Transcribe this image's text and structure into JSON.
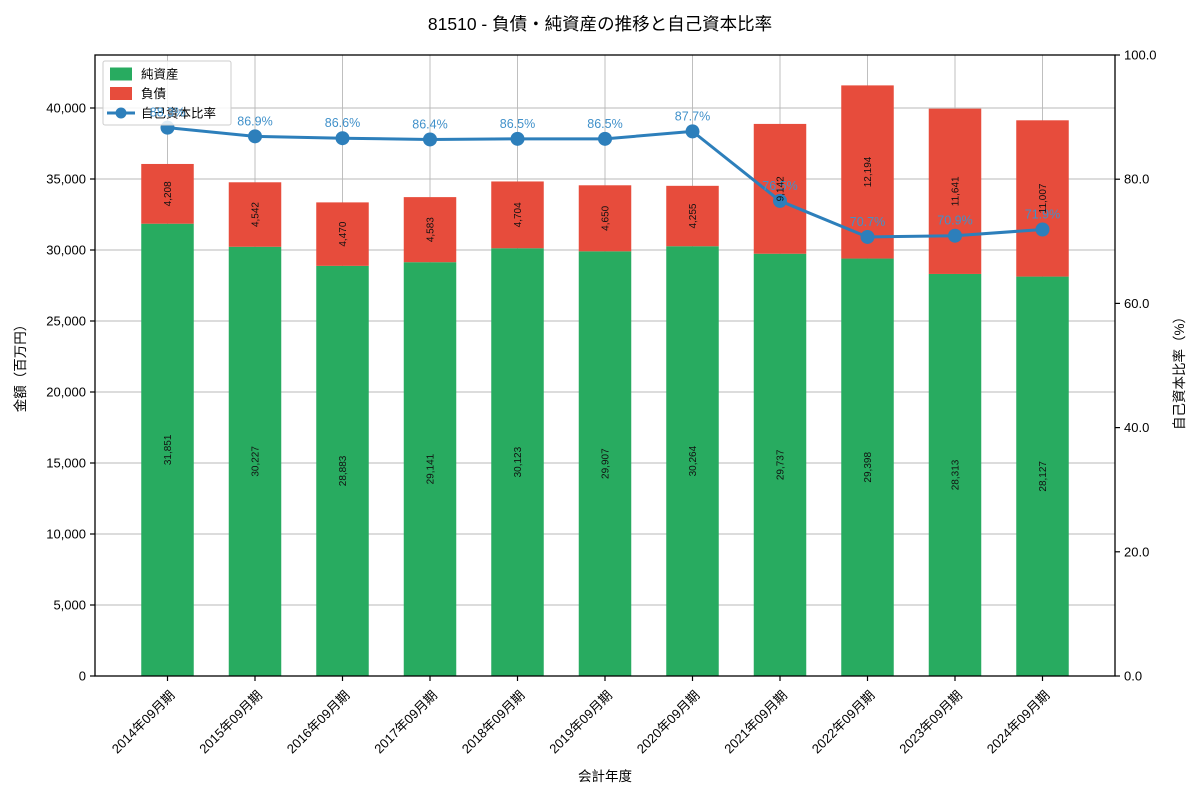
{
  "title": "81510 - 負債・純資産の推移と自己資本比率",
  "chart_data": {
    "type": "bar",
    "stacked": true,
    "grid": true,
    "legend_position": "upper left",
    "xlabel": "会計年度",
    "ylabel_left": "金額（百万円）",
    "ylabel_right": "自己資本比率（%）",
    "ylim_left": [
      0,
      43732
    ],
    "yticks_left": [
      0,
      5000,
      10000,
      15000,
      20000,
      25000,
      30000,
      35000,
      40000
    ],
    "ylim_right": [
      0,
      100
    ],
    "yticks_right": [
      0,
      20,
      40,
      60,
      80,
      100
    ],
    "categories": [
      "2014年09月期",
      "2015年09月期",
      "2016年09月期",
      "2017年09月期",
      "2018年09月期",
      "2019年09月期",
      "2020年09月期",
      "2021年09月期",
      "2022年09月期",
      "2023年09月期",
      "2024年09月期"
    ],
    "series": [
      {
        "name": "純資産",
        "type": "bar",
        "color": "#28ab60",
        "values": [
          31851,
          30227,
          28883,
          29141,
          30123,
          29907,
          30264,
          29737,
          29398,
          28313,
          28127
        ]
      },
      {
        "name": "負債",
        "type": "bar",
        "color": "#e74c3c",
        "values": [
          4208,
          4542,
          4470,
          4583,
          4704,
          4650,
          4255,
          9142,
          12194,
          11641,
          11007
        ]
      },
      {
        "name": "自己資本比率",
        "type": "line",
        "axis": "right",
        "color": "#2d7fbb",
        "label_color": "#4191ca",
        "values": [
          88.3,
          86.9,
          86.6,
          86.4,
          86.5,
          86.5,
          87.7,
          76.5,
          70.7,
          70.9,
          71.9
        ]
      }
    ],
    "colors": {
      "grid": "#b8b8b8",
      "spine": "#000000",
      "bar_label": "#111111"
    }
  }
}
